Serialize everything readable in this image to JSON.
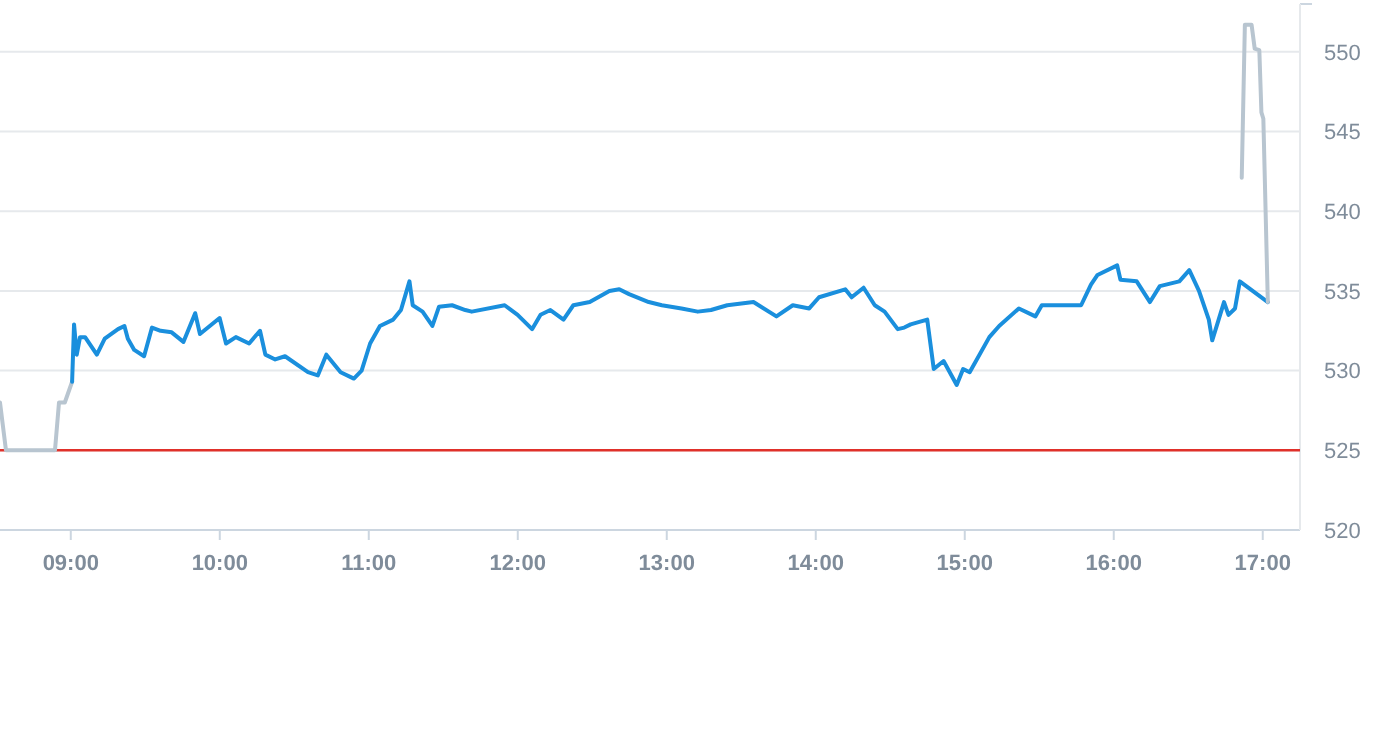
{
  "chart_data": {
    "type": "line",
    "xlim": [
      8.525,
      17.25
    ],
    "ylim": [
      520,
      553
    ],
    "xticks": [
      {
        "value": 9,
        "label": "09:00"
      },
      {
        "value": 10,
        "label": "10:00"
      },
      {
        "value": 11,
        "label": "11:00"
      },
      {
        "value": 12,
        "label": "12:00"
      },
      {
        "value": 13,
        "label": "13:00"
      },
      {
        "value": 14,
        "label": "14:00"
      },
      {
        "value": 15,
        "label": "15:00"
      },
      {
        "value": 16,
        "label": "16:00"
      },
      {
        "value": 17,
        "label": "17:00"
      }
    ],
    "yticks": [
      520,
      525,
      530,
      535,
      540,
      545,
      550,
      {
        "value": 553,
        "label": null
      }
    ],
    "grid": "y",
    "marker": "none",
    "line_style": "solid",
    "ref_lines": [
      {
        "axis": "y",
        "value": 525,
        "color": "#e0302a"
      }
    ],
    "series": [
      {
        "color": "#b8c5d0",
        "x": [
          8.525,
          8.565,
          8.894,
          8.921,
          8.96,
          9.009
        ],
        "values": [
          528,
          525,
          525,
          528,
          528,
          529.3
        ]
      },
      {
        "color": "#1a8fdd",
        "x": [
          9.009,
          9.022,
          9.04,
          9.062,
          9.096,
          9.175,
          9.228,
          9.317,
          9.36,
          9.383,
          9.426,
          9.492,
          9.545,
          9.603,
          9.677,
          9.756,
          9.835,
          9.867,
          9.999,
          10.042,
          10.108,
          10.197,
          10.27,
          10.306,
          10.372,
          10.438,
          10.592,
          10.658,
          10.715,
          10.811,
          10.9,
          10.952,
          11.009,
          11.075,
          11.164,
          11.216,
          11.273,
          11.295,
          11.361,
          11.427,
          11.471,
          11.559,
          11.648,
          11.691,
          11.912,
          11.999,
          12.096,
          12.153,
          12.219,
          12.307,
          12.373,
          12.483,
          12.615,
          12.681,
          12.747,
          12.879,
          12.967,
          13.099,
          13.208,
          13.297,
          13.406,
          13.582,
          13.736,
          13.846,
          13.956,
          14.022,
          14.198,
          14.241,
          14.321,
          14.396,
          14.462,
          14.55,
          14.594,
          14.637,
          14.748,
          14.792,
          14.858,
          14.946,
          14.989,
          15.033,
          15.165,
          15.231,
          15.363,
          15.474,
          15.517,
          15.781,
          15.847,
          15.891,
          16.023,
          16.045,
          16.154,
          16.243,
          16.309,
          16.44,
          16.507,
          16.572,
          16.638,
          16.661,
          16.704,
          16.74,
          16.77,
          16.814,
          16.846,
          17.034
        ],
        "values": [
          529.3,
          532.9,
          531.0,
          532.1,
          532.1,
          531.0,
          532.0,
          532.6,
          532.8,
          532.0,
          531.3,
          530.9,
          532.7,
          532.5,
          532.4,
          531.8,
          533.6,
          532.3,
          533.3,
          531.7,
          532.1,
          531.7,
          532.5,
          531.0,
          530.7,
          530.9,
          529.9,
          529.7,
          531.0,
          529.9,
          529.5,
          530.0,
          531.7,
          532.8,
          533.2,
          533.8,
          535.6,
          534.1,
          533.7,
          532.8,
          534.0,
          534.1,
          533.8,
          533.7,
          534.1,
          533.5,
          532.6,
          533.5,
          533.8,
          533.2,
          534.1,
          534.3,
          535.0,
          535.1,
          534.8,
          534.3,
          534.1,
          533.9,
          533.7,
          533.8,
          534.1,
          534.3,
          533.4,
          534.1,
          533.9,
          534.6,
          535.1,
          534.6,
          535.2,
          534.1,
          533.7,
          532.6,
          532.7,
          532.9,
          533.2,
          530.1,
          530.6,
          529.1,
          530.1,
          529.9,
          532.1,
          532.8,
          533.9,
          533.4,
          534.1,
          534.1,
          535.4,
          536.0,
          536.6,
          535.7,
          535.6,
          534.3,
          535.3,
          535.6,
          536.3,
          535.0,
          533.2,
          531.9,
          533.2,
          534.3,
          533.5,
          533.9,
          535.6,
          534.3
        ]
      },
      {
        "color": "#b8c5d0",
        "x": [
          16.859,
          16.88,
          16.925,
          16.946,
          16.977,
          16.991,
          17.004,
          17.034
        ],
        "values": [
          542.1,
          551.7,
          551.7,
          550.2,
          550.1,
          546.2,
          545.8,
          534.3
        ]
      }
    ]
  }
}
